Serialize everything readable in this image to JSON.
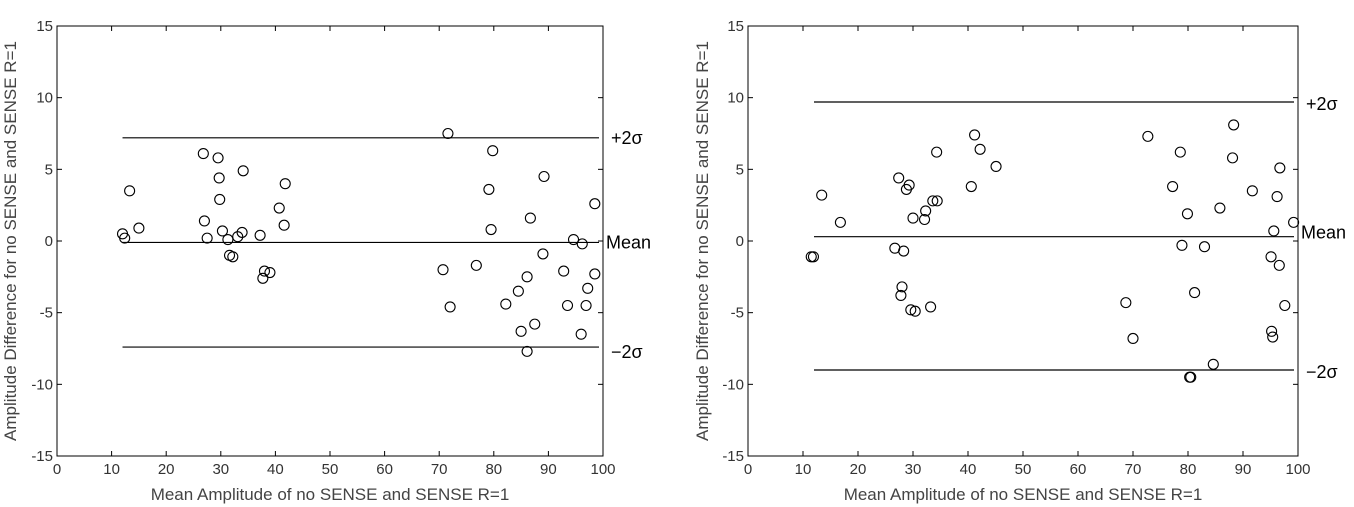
{
  "chart_data": [
    {
      "type": "scatter",
      "xlabel": "Mean Amplitude of no SENSE and SENSE R=1",
      "ylabel": "Amplitude Difference for no SENSE and SENSE R=1",
      "xlim": [
        0,
        100
      ],
      "ylim": [
        -15,
        15
      ],
      "xticks": [
        "0",
        "10",
        "20",
        "30",
        "40",
        "50",
        "60",
        "70",
        "80",
        "90",
        "100"
      ],
      "yticks": [
        "15",
        "10",
        "5",
        "0",
        "-5",
        "-10",
        "-15"
      ],
      "grid": false,
      "reference_lines": [
        {
          "label": "+2σ",
          "y": 7.2
        },
        {
          "label": "Mean",
          "y": -0.1
        },
        {
          "label": "−2σ",
          "y": -7.4
        }
      ],
      "points": [
        [
          12,
          0.5
        ],
        [
          12.4,
          0.2
        ],
        [
          13.3,
          3.5
        ],
        [
          15,
          0.9
        ],
        [
          26.8,
          6.1
        ],
        [
          27,
          1.4
        ],
        [
          27.5,
          0.2
        ],
        [
          29.5,
          5.8
        ],
        [
          29.7,
          4.4
        ],
        [
          29.8,
          2.9
        ],
        [
          30.3,
          0.7
        ],
        [
          31.3,
          0.1
        ],
        [
          31.6,
          -1
        ],
        [
          32.2,
          -1.1
        ],
        [
          33.1,
          0.3
        ],
        [
          33.9,
          0.6
        ],
        [
          34.1,
          4.9
        ],
        [
          37.2,
          0.4
        ],
        [
          37.7,
          -2.6
        ],
        [
          38,
          -2.1
        ],
        [
          39,
          -2.2
        ],
        [
          40.7,
          2.3
        ],
        [
          41.6,
          1.1
        ],
        [
          41.8,
          4
        ],
        [
          70.7,
          -2
        ],
        [
          71.6,
          7.5
        ],
        [
          72,
          -4.6
        ],
        [
          76.8,
          -1.7
        ],
        [
          79.1,
          3.6
        ],
        [
          79.5,
          0.8
        ],
        [
          79.8,
          6.3
        ],
        [
          82.2,
          -4.4
        ],
        [
          84.5,
          -3.5
        ],
        [
          85,
          -6.3
        ],
        [
          86.1,
          -2.5
        ],
        [
          86.1,
          -7.7
        ],
        [
          86.7,
          1.6
        ],
        [
          87.5,
          -5.8
        ],
        [
          89,
          -0.9
        ],
        [
          89.2,
          4.5
        ],
        [
          92.8,
          -2.1
        ],
        [
          93.5,
          -4.5
        ],
        [
          94.6,
          0.1
        ],
        [
          96,
          -6.5
        ],
        [
          96.2,
          -0.2
        ],
        [
          96.9,
          -4.5
        ],
        [
          97.2,
          -3.3
        ],
        [
          98.5,
          -2.3
        ],
        [
          98.5,
          2.6
        ]
      ]
    },
    {
      "type": "scatter",
      "xlabel": "Mean Amplitude of no SENSE and SENSE R=1",
      "ylabel": "Amplitude Difference for no SENSE and SENSE R=1",
      "xlim": [
        0,
        100
      ],
      "ylim": [
        -15,
        15
      ],
      "xticks": [
        "0",
        "10",
        "20",
        "30",
        "40",
        "50",
        "60",
        "70",
        "80",
        "90",
        "100"
      ],
      "yticks": [
        "15",
        "10",
        "5",
        "0",
        "-5",
        "-10",
        "-15"
      ],
      "grid": false,
      "reference_lines": [
        {
          "label": "+2σ",
          "y": 9.7
        },
        {
          "label": "Mean",
          "y": 0.3
        },
        {
          "label": "−2σ",
          "y": -9.0
        }
      ],
      "points": [
        [
          11.5,
          -1.1
        ],
        [
          11.9,
          -1.1
        ],
        [
          13.4,
          3.2
        ],
        [
          16.8,
          1.3
        ],
        [
          26.7,
          -0.5
        ],
        [
          27.4,
          4.4
        ],
        [
          27.8,
          -3.8
        ],
        [
          28,
          -3.2
        ],
        [
          28.3,
          -0.7
        ],
        [
          28.8,
          3.6
        ],
        [
          29.3,
          3.9
        ],
        [
          29.6,
          -4.8
        ],
        [
          30,
          1.6
        ],
        [
          30.4,
          -4.9
        ],
        [
          32.1,
          1.5
        ],
        [
          32.3,
          2.1
        ],
        [
          33.2,
          -4.6
        ],
        [
          33.6,
          2.8
        ],
        [
          34.3,
          6.2
        ],
        [
          34.4,
          2.8
        ],
        [
          40.6,
          3.8
        ],
        [
          41.2,
          7.4
        ],
        [
          42.2,
          6.4
        ],
        [
          45.1,
          5.2
        ],
        [
          68.7,
          -4.3
        ],
        [
          70,
          -6.8
        ],
        [
          72.7,
          7.3
        ],
        [
          77.2,
          3.8
        ],
        [
          78.6,
          6.2
        ],
        [
          78.9,
          -0.3
        ],
        [
          79.9,
          1.9
        ],
        [
          80.3,
          -9.5
        ],
        [
          80.5,
          -9.5
        ],
        [
          81.2,
          -3.6
        ],
        [
          83,
          -0.4
        ],
        [
          84.6,
          -8.6
        ],
        [
          85.8,
          2.3
        ],
        [
          88.1,
          5.8
        ],
        [
          88.3,
          8.1
        ],
        [
          91.7,
          3.5
        ],
        [
          95.1,
          -1.1
        ],
        [
          95.2,
          -6.3
        ],
        [
          95.4,
          -6.7
        ],
        [
          95.6,
          0.7
        ],
        [
          96.2,
          3.1
        ],
        [
          96.6,
          -1.7
        ],
        [
          96.7,
          5.1
        ],
        [
          97.6,
          -4.5
        ],
        [
          99.2,
          1.3
        ]
      ]
    }
  ]
}
